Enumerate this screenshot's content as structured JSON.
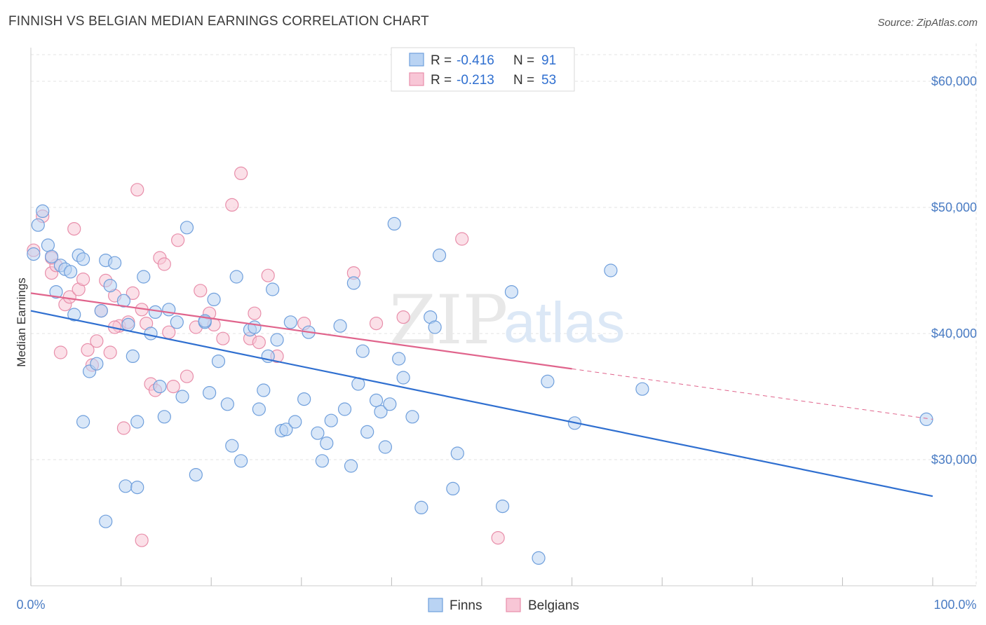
{
  "title": "FINNISH VS BELGIAN MEDIAN EARNINGS CORRELATION CHART",
  "source": "Source: ZipAtlas.com",
  "watermark": {
    "zip": "ZIP",
    "atlas": "atlas"
  },
  "legend": {
    "r_label": "R =",
    "n_label": "N =",
    "rows": [
      {
        "r": "-0.416",
        "n": "91"
      },
      {
        "r": "-0.213",
        "n": "53"
      }
    ]
  },
  "colors": {
    "finns_fill": "#b9d3f3",
    "finns_stroke": "#6f9fdc",
    "finns_line": "#2f6fd0",
    "belgians_fill": "#f8c6d6",
    "belgians_stroke": "#e88eaa",
    "belgians_line": "#e0648c",
    "grid": "#e3e3e3",
    "axis_text": "#4a7cc4"
  },
  "chart_data": {
    "type": "scatter",
    "title": "FINNISH VS BELGIAN MEDIAN EARNINGS CORRELATION CHART",
    "xlabel": "",
    "ylabel": "Median Earnings",
    "xlim": [
      0,
      100
    ],
    "ylim": [
      20000,
      63000
    ],
    "x_tick_labels": [
      "0.0%",
      "100.0%"
    ],
    "y_ticks": [
      30000,
      40000,
      50000,
      60000
    ],
    "y_tick_labels": [
      "$30,000",
      "$40,000",
      "$50,000",
      "$60,000"
    ],
    "grid": true,
    "legend_position": "top-center",
    "series": [
      {
        "name": "Finns",
        "r": -0.416,
        "n": 91,
        "trend": {
          "x": [
            0,
            100
          ],
          "y": [
            41800,
            27100
          ],
          "dashed_from": null
        },
        "points": [
          [
            0.3,
            46300
          ],
          [
            0.8,
            48600
          ],
          [
            1.3,
            49700
          ],
          [
            1.9,
            47000
          ],
          [
            2.3,
            46100
          ],
          [
            2.8,
            43300
          ],
          [
            3.3,
            45400
          ],
          [
            3.8,
            45100
          ],
          [
            4.4,
            44900
          ],
          [
            4.8,
            41500
          ],
          [
            5.3,
            46200
          ],
          [
            5.8,
            45900
          ],
          [
            6.5,
            37000
          ],
          [
            7.3,
            37600
          ],
          [
            7.8,
            41800
          ],
          [
            8.3,
            45800
          ],
          [
            8.8,
            43800
          ],
          [
            9.3,
            45600
          ],
          [
            10.3,
            42600
          ],
          [
            10.8,
            40700
          ],
          [
            11.3,
            38200
          ],
          [
            11.8,
            33000
          ],
          [
            12.5,
            44500
          ],
          [
            13.3,
            40000
          ],
          [
            13.8,
            41700
          ],
          [
            14.3,
            35800
          ],
          [
            14.8,
            33400
          ],
          [
            15.3,
            41900
          ],
          [
            16.2,
            40900
          ],
          [
            16.8,
            35000
          ],
          [
            17.3,
            48400
          ],
          [
            18.3,
            28800
          ],
          [
            19.3,
            40900
          ],
          [
            19.8,
            35300
          ],
          [
            20.3,
            42700
          ],
          [
            20.8,
            37800
          ],
          [
            21.8,
            34400
          ],
          [
            22.3,
            31100
          ],
          [
            22.8,
            44500
          ],
          [
            23.3,
            29900
          ],
          [
            24.3,
            40300
          ],
          [
            24.8,
            40500
          ],
          [
            25.3,
            34000
          ],
          [
            25.8,
            35500
          ],
          [
            26.3,
            38200
          ],
          [
            26.8,
            43500
          ],
          [
            27.3,
            39500
          ],
          [
            27.8,
            32300
          ],
          [
            28.3,
            32400
          ],
          [
            28.8,
            40900
          ],
          [
            29.3,
            33000
          ],
          [
            30.3,
            34800
          ],
          [
            30.8,
            40100
          ],
          [
            31.8,
            32100
          ],
          [
            32.3,
            29900
          ],
          [
            32.8,
            31300
          ],
          [
            33.3,
            33100
          ],
          [
            34.3,
            40600
          ],
          [
            34.8,
            34000
          ],
          [
            35.5,
            29500
          ],
          [
            35.8,
            44000
          ],
          [
            36.3,
            36000
          ],
          [
            36.8,
            38600
          ],
          [
            37.3,
            32200
          ],
          [
            38.3,
            34700
          ],
          [
            38.8,
            33800
          ],
          [
            39.3,
            31000
          ],
          [
            39.8,
            34400
          ],
          [
            40.3,
            48700
          ],
          [
            40.8,
            38000
          ],
          [
            41.3,
            36500
          ],
          [
            42.3,
            33400
          ],
          [
            43.3,
            26200
          ],
          [
            44.3,
            41300
          ],
          [
            44.8,
            40500
          ],
          [
            45.3,
            46200
          ],
          [
            46.8,
            27700
          ],
          [
            47.3,
            30500
          ],
          [
            52.3,
            26300
          ],
          [
            53.3,
            43300
          ],
          [
            56.3,
            22200
          ],
          [
            57.3,
            36200
          ],
          [
            60.3,
            32900
          ],
          [
            64.3,
            45000
          ],
          [
            67.8,
            35600
          ],
          [
            99.3,
            33200
          ],
          [
            5.8,
            33000
          ],
          [
            8.3,
            25100
          ],
          [
            10.5,
            27900
          ],
          [
            11.8,
            27800
          ],
          [
            19.3,
            41000
          ]
        ]
      },
      {
        "name": "Belgians",
        "r": -0.213,
        "n": 53,
        "trend": {
          "x": [
            0,
            100
          ],
          "y": [
            43200,
            33200
          ],
          "dashed_from": 60
        },
        "points": [
          [
            0.3,
            46600
          ],
          [
            1.3,
            49300
          ],
          [
            2.3,
            44800
          ],
          [
            2.8,
            45400
          ],
          [
            3.3,
            38500
          ],
          [
            3.8,
            42300
          ],
          [
            4.3,
            42900
          ],
          [
            4.8,
            48300
          ],
          [
            5.3,
            43500
          ],
          [
            5.8,
            44300
          ],
          [
            6.3,
            38700
          ],
          [
            6.8,
            37500
          ],
          [
            7.3,
            39400
          ],
          [
            7.8,
            41800
          ],
          [
            8.3,
            44200
          ],
          [
            8.8,
            38500
          ],
          [
            9.3,
            43000
          ],
          [
            9.8,
            40600
          ],
          [
            10.3,
            32500
          ],
          [
            10.8,
            40900
          ],
          [
            11.3,
            43200
          ],
          [
            11.8,
            51400
          ],
          [
            12.3,
            41900
          ],
          [
            12.8,
            40800
          ],
          [
            13.3,
            36000
          ],
          [
            13.8,
            35500
          ],
          [
            14.3,
            46000
          ],
          [
            14.8,
            45500
          ],
          [
            15.3,
            40100
          ],
          [
            15.8,
            35800
          ],
          [
            16.3,
            47400
          ],
          [
            17.3,
            36600
          ],
          [
            18.3,
            40500
          ],
          [
            18.8,
            43400
          ],
          [
            19.8,
            41600
          ],
          [
            20.3,
            40700
          ],
          [
            21.3,
            39600
          ],
          [
            22.3,
            50200
          ],
          [
            23.3,
            52700
          ],
          [
            24.3,
            39600
          ],
          [
            24.8,
            41600
          ],
          [
            25.3,
            39300
          ],
          [
            26.3,
            44600
          ],
          [
            27.3,
            38200
          ],
          [
            30.3,
            40800
          ],
          [
            35.8,
            44800
          ],
          [
            38.3,
            40800
          ],
          [
            41.3,
            41300
          ],
          [
            47.8,
            47500
          ],
          [
            51.8,
            23800
          ],
          [
            12.3,
            23600
          ],
          [
            9.3,
            40500
          ],
          [
            2.3,
            46000
          ]
        ]
      }
    ]
  }
}
